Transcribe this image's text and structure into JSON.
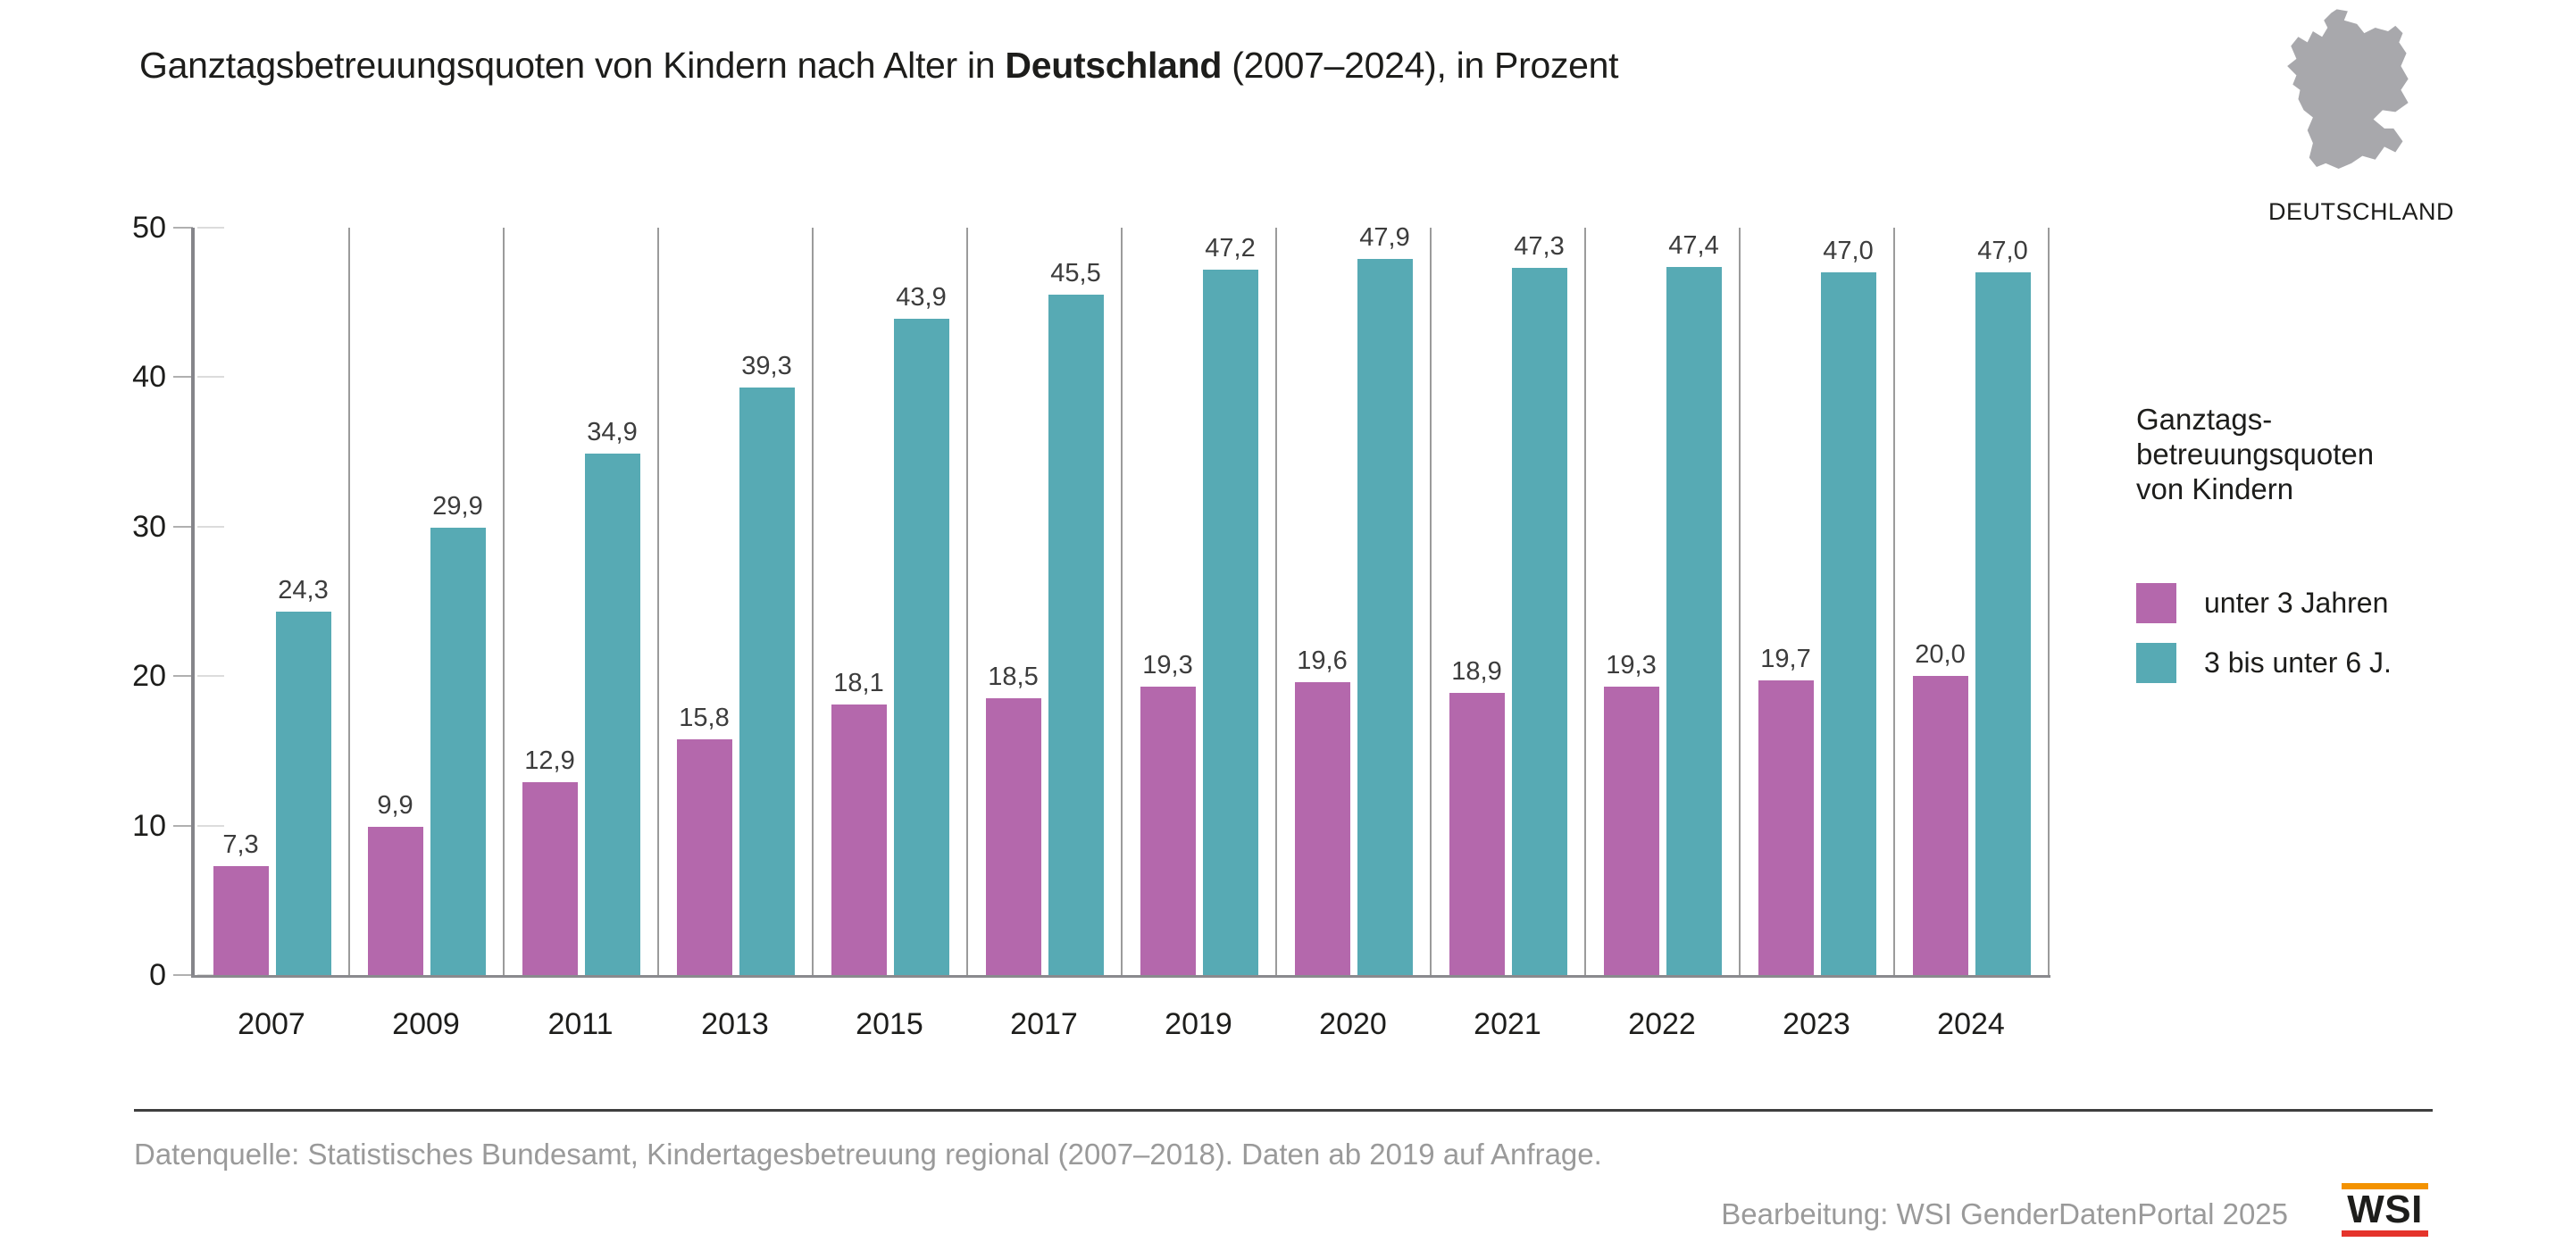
{
  "title": {
    "prefix": "Ganztagsbetreuungsquoten von Kindern nach Alter in ",
    "emphasis": "Deutschland",
    "suffix": " (2007–2024), in Prozent"
  },
  "map": {
    "label": "DEUTSCHLAND",
    "color": "#a8a8ac"
  },
  "legend": {
    "title_lines": [
      "Ganztags-",
      "betreuungsquoten",
      "von Kindern"
    ],
    "items": [
      {
        "label": "unter 3 Jahren",
        "color": "#b468ac"
      },
      {
        "label": "3 bis unter 6 J.",
        "color": "#57aab4"
      }
    ]
  },
  "chart_data": {
    "type": "bar",
    "categories": [
      "2007",
      "2009",
      "2011",
      "2013",
      "2015",
      "2017",
      "2019",
      "2020",
      "2021",
      "2022",
      "2023",
      "2024"
    ],
    "series": [
      {
        "name": "unter 3 Jahren",
        "color": "#b468ac",
        "values": [
          7.3,
          9.9,
          12.9,
          15.8,
          18.1,
          18.5,
          19.3,
          19.6,
          18.9,
          19.3,
          19.7,
          20.0
        ]
      },
      {
        "name": "3 bis unter 6 J.",
        "color": "#57aab4",
        "values": [
          24.3,
          29.9,
          34.9,
          39.3,
          43.9,
          45.5,
          47.2,
          47.9,
          47.3,
          47.4,
          47.0,
          47.0
        ]
      }
    ],
    "title": "Ganztagsbetreuungsquoten von Kindern nach Alter in Deutschland (2007–2024), in Prozent",
    "xlabel": "",
    "ylabel": "",
    "ylim": [
      0,
      50
    ],
    "yticks": [
      0,
      10,
      20,
      30,
      40,
      50
    ],
    "decimal_separator": ",",
    "grid": "vertical group dividers only, horizontal gridlines off",
    "legend_position": "right",
    "value_labels": "above each bar, one decimal, comma separator"
  },
  "footer": {
    "source": "Datenquelle: Statistisches Bundesamt, Kindertagesbetreuung regional (2007–2018). Daten ab 2019 auf Anfrage.",
    "credit": "Bearbeitung: WSI GenderDatenPortal 2025",
    "logo_text": "WSI",
    "logo_orange": "#f39200",
    "logo_red": "#e5342b"
  }
}
